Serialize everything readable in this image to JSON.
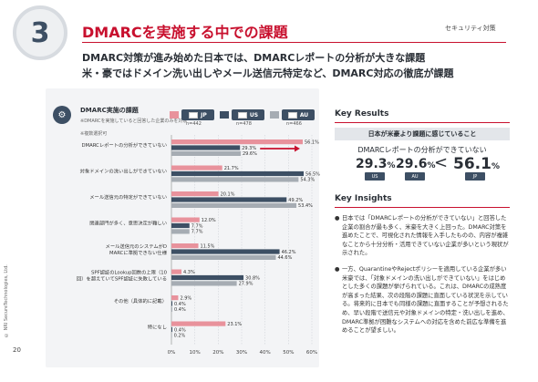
{
  "header": {
    "section_number": "3",
    "title": "DMARCを実施する中での課題",
    "category": "セキュリティ対策",
    "subtitle_1": "DMARC対策が進み始めた日本では、DMARCレポートの分析が大きな課題",
    "subtitle_2": "米・豪ではドメイン洗い出しやメール送信元特定など、DMARC対応の徹底が課題"
  },
  "footer": {
    "page_number": "20",
    "copyright": "© NRI SecureTechnologies, Ltd."
  },
  "chart_panel": {
    "title": "DMARC実施の課題",
    "note_1": "※DMARCを実施していると回答した企業のみを対象",
    "note_2": "※複数選択可",
    "icon": "user-gear-icon"
  },
  "chart_data": {
    "type": "bar",
    "orientation": "horizontal",
    "categories": [
      "DMARCレポートの分析ができていない",
      "対象ドメインの洗い出しができていない",
      "メール送信元の特定ができていない",
      "関連部門が多く、意思決定が難しい",
      "メール送信元のシステムがDMARCに準拠できない仕様",
      "SPF認証のLookup回数の上限（10回）を超えていてSPF認証に失敗している",
      "その他（具体的に記載）",
      "特になし"
    ],
    "series": [
      {
        "name": "JP",
        "n": "n=442",
        "color": "#e8929c",
        "values": [
          56.1,
          21.7,
          20.1,
          12.0,
          11.5,
          4.3,
          2.9,
          23.1
        ]
      },
      {
        "name": "US",
        "n": "n=478",
        "color": "#3d4f64",
        "values": [
          29.3,
          56.5,
          49.2,
          7.7,
          46.2,
          30.8,
          0.4,
          0.4
        ]
      },
      {
        "name": "AU",
        "n": "n=466",
        "color": "#a6acb3",
        "values": [
          29.6,
          54.3,
          53.4,
          7.7,
          44.6,
          27.9,
          0.4,
          0.2
        ]
      }
    ],
    "x_ticks": [
      "0%",
      "10%",
      "20%",
      "30%",
      "40%",
      "50%",
      "60%"
    ],
    "xlim": [
      0,
      60
    ],
    "grid": true,
    "highlight_arrow_category": 0
  },
  "key_results": {
    "heading": "Key Results",
    "banner": "日本が米豪より課題に感じていること",
    "label": "DMARCレポートの分析ができていない",
    "stats": [
      {
        "value": "29.3",
        "unit": "%",
        "country": "US"
      },
      {
        "value": "29.6",
        "unit": "%",
        "country": "AU"
      },
      {
        "value": "56.1",
        "unit": "%",
        "country": "JP"
      }
    ],
    "comparator": "<"
  },
  "key_insights": {
    "heading": "Key Insights",
    "bullets": [
      "日本では「DMARCレポートの分析ができていない」と回答した企業の割合が最も多く、米豪を大きく上回った。DMARC対策を進めたことで、可視化された情報を入手したものの、内容が複雑なことから十分分析・活用できていない企業が多いという現状が示された。",
      "一方、QuarantineやRejectポリシーを適用している企業が多い米豪では、「対象ドメインの洗い出しができていない」をはじめとした多くの課題が挙げられている。これは、DMARCの成熟度が高まった結果、次の段階の課題に直面している状況を示している。将来的に日本でも同様の課題に直面することが予想されるため、早い段階で送信元や対象ドメインの特定・洗い出しを進め、DMARC準拠が困難なシステムへの対応を含めた前広な準備を進めることが望ましい。"
    ]
  }
}
